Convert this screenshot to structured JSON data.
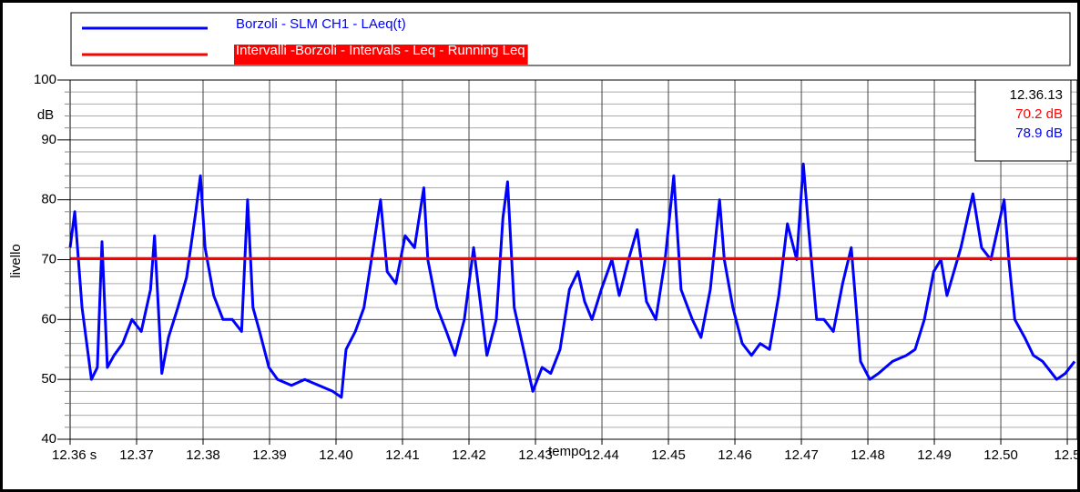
{
  "chart_data": {
    "type": "line",
    "x_label": "tempo",
    "y_label": "livello",
    "y_unit": "dB",
    "xlim": [
      12.36,
      12.5115
    ],
    "ylim": [
      40,
      100
    ],
    "xticks": [
      {
        "value": 12.36,
        "label": "12.36 s"
      },
      12.37,
      12.38,
      12.39,
      {
        "value": 12.4,
        "label": "12.40"
      },
      12.41,
      12.42,
      12.43,
      12.44,
      12.45,
      12.46,
      12.47,
      12.48,
      12.49,
      {
        "value": 12.5,
        "label": "12.50"
      },
      {
        "value": 12.51,
        "label": "12.5"
      }
    ],
    "yticks": [
      40,
      50,
      60,
      70,
      80,
      90,
      100
    ],
    "yminorticks": [
      42,
      44,
      46,
      48,
      52,
      54,
      56,
      58,
      62,
      64,
      66,
      68,
      72,
      74,
      76,
      78,
      82,
      84,
      86,
      88,
      92,
      94,
      96,
      98
    ],
    "grid": true,
    "series": [
      {
        "name": "Borzoli - SLM CH1 - LAeq(t)",
        "color": "#0000ff",
        "x": [
          12.36,
          12.3607,
          12.3618,
          12.3632,
          12.3641,
          12.3648,
          12.3656,
          12.3666,
          12.3679,
          12.3693,
          12.3707,
          12.3721,
          12.3727,
          12.3738,
          12.3748,
          12.3762,
          12.3775,
          12.3789,
          12.3796,
          12.3803,
          12.3816,
          12.383,
          12.3844,
          12.3858,
          12.3867,
          12.3875,
          12.3885,
          12.3899,
          12.3912,
          12.3933,
          12.3953,
          12.3974,
          12.3995,
          12.4008,
          12.4015,
          12.4029,
          12.4042,
          12.4056,
          12.4067,
          12.4077,
          12.409,
          12.4104,
          12.4118,
          12.4132,
          12.4138,
          12.4152,
          12.4166,
          12.4179,
          12.4193,
          12.4207,
          12.4218,
          12.4227,
          12.4241,
          12.4251,
          12.4258,
          12.4268,
          12.4282,
          12.4296,
          12.431,
          12.4323,
          12.4337,
          12.4351,
          12.4364,
          12.4374,
          12.4385,
          12.4399,
          12.4415,
          12.4426,
          12.444,
          12.4453,
          12.4467,
          12.4481,
          12.4495,
          12.4508,
          12.4519,
          12.4536,
          12.4549,
          12.4563,
          12.4577,
          12.4584,
          12.4597,
          12.4611,
          12.4625,
          12.4638,
          12.4652,
          12.4666,
          12.4679,
          12.4693,
          12.4703,
          12.4711,
          12.4723,
          12.4734,
          12.4748,
          12.4762,
          12.4775,
          12.4789,
          12.4803,
          12.4816,
          12.4837,
          12.4858,
          12.4871,
          12.4885,
          12.4899,
          12.491,
          12.4919,
          12.494,
          12.4958,
          12.4971,
          12.4985,
          12.4995,
          12.5005,
          12.5012,
          12.5021,
          12.5036,
          12.5049,
          12.5063,
          12.5084,
          12.5097,
          12.5111
        ],
        "values": [
          72,
          78,
          62,
          50,
          52,
          73,
          52,
          54,
          56,
          60,
          58,
          65,
          74,
          51,
          57,
          62,
          67,
          78,
          84,
          72,
          64,
          60,
          60,
          58,
          80,
          62,
          58,
          52,
          50,
          49,
          50,
          49,
          48,
          47,
          55,
          58,
          62,
          72,
          80,
          68,
          66,
          74,
          72,
          82,
          70,
          62,
          58,
          54,
          60,
          72,
          62,
          54,
          60,
          77,
          83,
          62,
          55,
          48,
          52,
          51,
          55,
          65,
          68,
          63,
          60,
          65,
          70,
          64,
          70,
          75,
          63,
          60,
          70,
          84,
          65,
          60,
          57,
          65,
          80,
          70,
          62,
          56,
          54,
          56,
          55,
          64,
          76,
          70,
          86,
          75,
          60,
          60,
          58,
          66,
          72,
          53,
          50,
          51,
          53,
          54,
          55,
          60,
          68,
          70,
          64,
          72,
          81,
          72,
          70,
          75,
          80,
          70,
          60,
          57,
          54,
          53,
          50,
          51,
          53
        ]
      },
      {
        "name": "Intervalli -Borzoli - Intervals - Leq - Running Leq",
        "color": "#ff0000",
        "x": [
          12.36,
          12.5115
        ],
        "values": [
          70.2,
          70.2
        ]
      }
    ],
    "readout": {
      "time": "12.36.13",
      "lines": [
        "70.2 dB",
        "78.9 dB"
      ]
    }
  }
}
